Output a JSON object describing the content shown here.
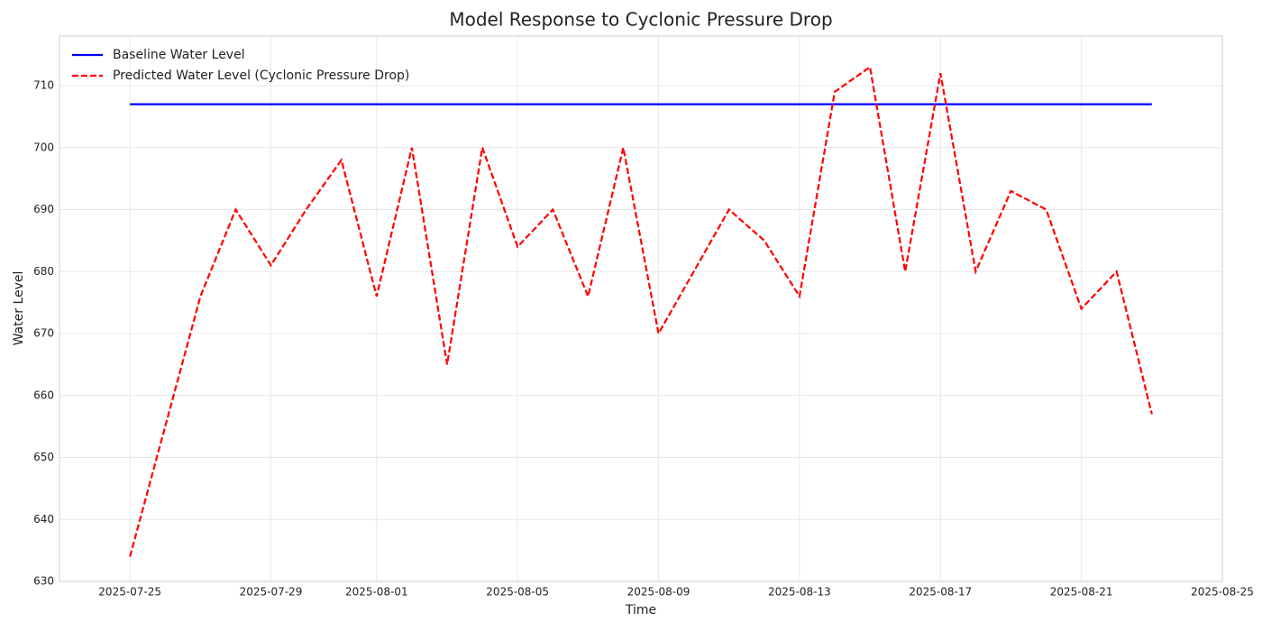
{
  "chart_data": {
    "type": "line",
    "title": "Model Response to Cyclonic Pressure Drop",
    "x_label": "Time",
    "y_label": "Water Level",
    "x": [
      "2025-07-25",
      "2025-07-26",
      "2025-07-27",
      "2025-07-28",
      "2025-07-29",
      "2025-07-30",
      "2025-07-31",
      "2025-08-01",
      "2025-08-02",
      "2025-08-03",
      "2025-08-04",
      "2025-08-05",
      "2025-08-06",
      "2025-08-07",
      "2025-08-08",
      "2025-08-09",
      "2025-08-10",
      "2025-08-11",
      "2025-08-12",
      "2025-08-13",
      "2025-08-14",
      "2025-08-15",
      "2025-08-16",
      "2025-08-17",
      "2025-08-18",
      "2025-08-19",
      "2025-08-20",
      "2025-08-21",
      "2025-08-22",
      "2025-08-23"
    ],
    "series": [
      {
        "name": "Baseline Water Level",
        "color": "#0000ff",
        "dash": false,
        "values": [
          707,
          707,
          707,
          707,
          707,
          707,
          707,
          707,
          707,
          707,
          707,
          707,
          707,
          707,
          707,
          707,
          707,
          707,
          707,
          707,
          707,
          707,
          707,
          707,
          707,
          707,
          707,
          707,
          707,
          707
        ]
      },
      {
        "name": "Predicted Water Level (Cyclonic Pressure Drop)",
        "color": "#ff0000",
        "dash": true,
        "values": [
          634,
          655,
          676,
          690,
          681,
          690,
          698,
          676,
          700,
          665,
          700,
          684,
          690,
          676,
          700,
          670,
          680,
          690,
          685,
          676,
          709,
          713,
          680,
          712,
          680,
          693,
          690,
          674,
          680,
          657
        ]
      }
    ],
    "xlim": [
      "2025-07-23",
      "2025-08-25"
    ],
    "xticks": [
      "2025-07-25",
      "2025-07-29",
      "2025-08-01",
      "2025-08-05",
      "2025-08-09",
      "2025-08-13",
      "2025-08-17",
      "2025-08-21",
      "2025-08-25"
    ],
    "ylim": [
      630,
      718
    ],
    "yticks": [
      630,
      640,
      650,
      660,
      670,
      680,
      690,
      700,
      710
    ],
    "grid": true,
    "legend": "upper left"
  }
}
